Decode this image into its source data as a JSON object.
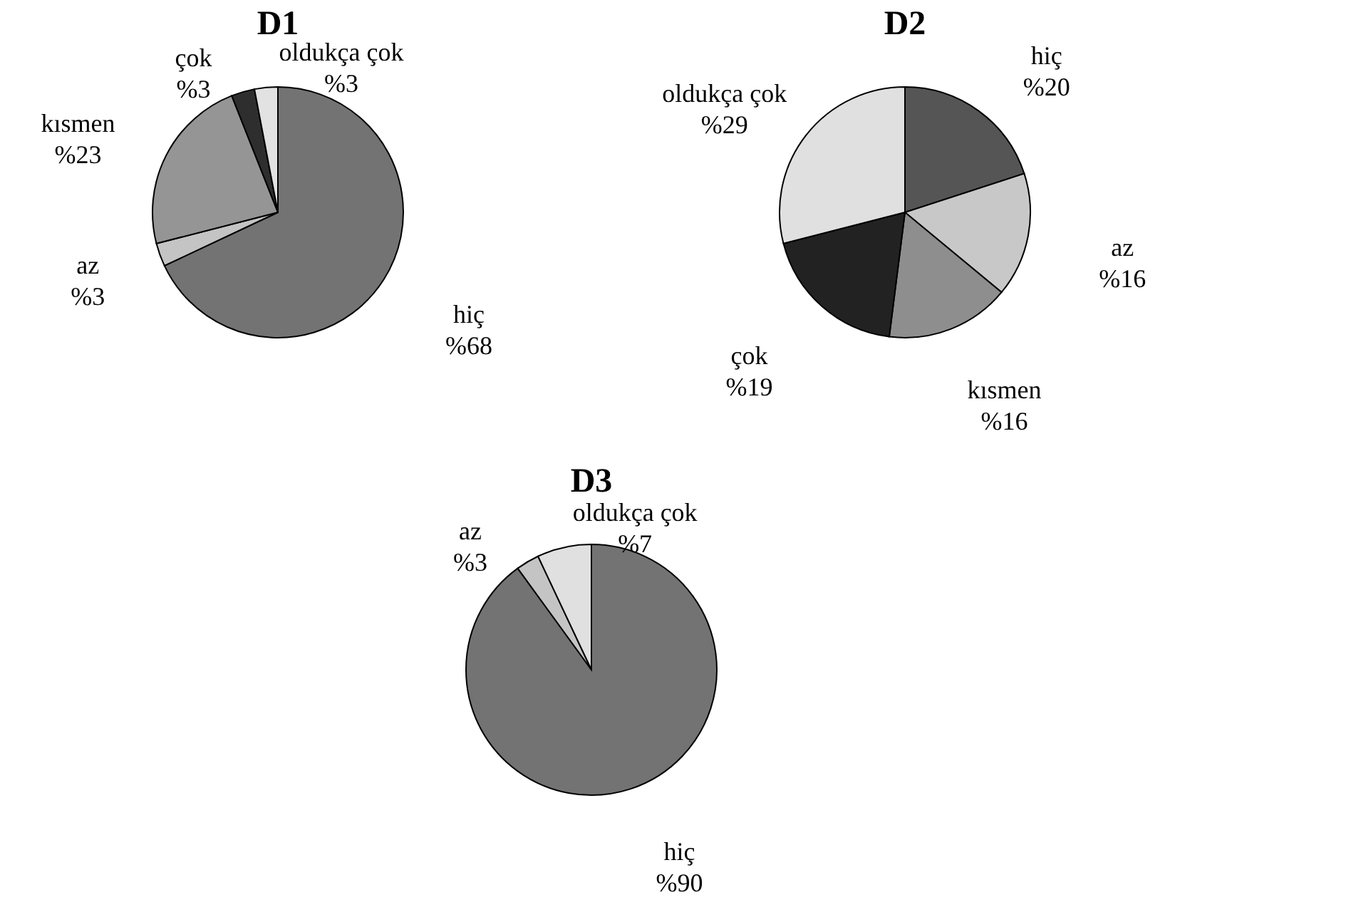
{
  "chart_data": [
    {
      "type": "pie",
      "title": "D1",
      "categories": [
        "hiç",
        "az",
        "kısmen",
        "çok",
        "oldukça çok"
      ],
      "values": [
        68,
        3,
        23,
        3,
        3
      ],
      "value_labels": [
        "%68",
        "%3",
        "%23",
        "%3",
        "%3"
      ],
      "colors": [
        "#737373",
        "#c4c4c4",
        "#959595",
        "#2e2e2e",
        "#e2e2e2"
      ]
    },
    {
      "type": "pie",
      "title": "D2",
      "categories": [
        "hiç",
        "az",
        "kısmen",
        "çok",
        "oldukça çok"
      ],
      "values": [
        20,
        16,
        16,
        19,
        29
      ],
      "value_labels": [
        "%20",
        "%16",
        "%16",
        "%19",
        "%29"
      ],
      "colors": [
        "#555555",
        "#c8c8c8",
        "#8e8e8e",
        "#222222",
        "#e0e0e0"
      ]
    },
    {
      "type": "pie",
      "title": "D3",
      "categories": [
        "hiç",
        "az",
        "oldukça çok"
      ],
      "values": [
        90,
        3,
        7
      ],
      "value_labels": [
        "%90",
        "%3",
        "%7"
      ],
      "colors": [
        "#737373",
        "#c4c4c4",
        "#e0e0e0"
      ]
    }
  ]
}
